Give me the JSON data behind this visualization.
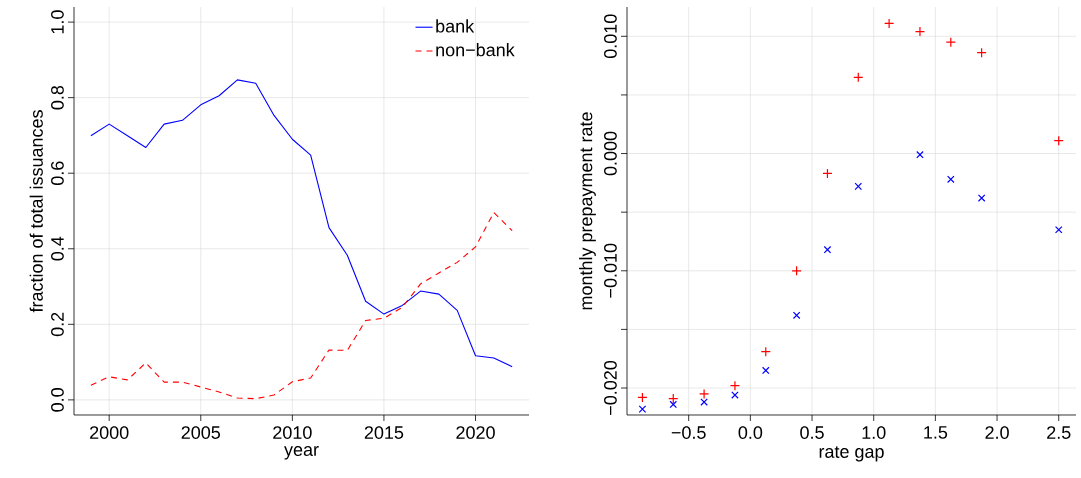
{
  "chart_data": [
    {
      "type": "line",
      "xlabel": "year",
      "ylabel": "fraction of total issuances",
      "x": [
        1999,
        2000,
        2001,
        2002,
        2003,
        2004,
        2005,
        2006,
        2007,
        2008,
        2009,
        2010,
        2011,
        2012,
        2013,
        2014,
        2015,
        2016,
        2017,
        2018,
        2019,
        2020,
        2021,
        2022
      ],
      "series": [
        {
          "name": "bank",
          "color": "#0000ff",
          "line_style": "solid",
          "values": [
            0.699,
            0.73,
            0.699,
            0.668,
            0.73,
            0.74,
            0.781,
            0.805,
            0.847,
            0.838,
            0.753,
            0.69,
            0.648,
            0.456,
            0.383,
            0.261,
            0.227,
            0.25,
            0.288,
            0.28,
            0.237,
            0.117,
            0.111,
            0.088
          ]
        },
        {
          "name": "non−bank",
          "color": "#ff0000",
          "line_style": "dashed",
          "values": [
            0.039,
            0.061,
            0.053,
            0.098,
            0.047,
            0.047,
            0.034,
            0.021,
            0.005,
            0.003,
            0.013,
            0.048,
            0.058,
            0.132,
            0.131,
            0.21,
            0.216,
            0.245,
            0.307,
            0.336,
            0.364,
            0.405,
            0.496,
            0.448
          ]
        }
      ],
      "xlim": [
        1998.08,
        2022.92
      ],
      "ylim": [
        -0.04,
        1.04
      ],
      "xticks": [
        2000,
        2005,
        2010,
        2015,
        2020
      ],
      "yticks": [
        {
          "value": 0,
          "label": "0.0"
        },
        0.2,
        0.4,
        0.6,
        0.8,
        {
          "value": 1,
          "label": "1.0"
        }
      ],
      "grid": true,
      "legend": "top right",
      "marker": "none"
    },
    {
      "type": "scatter",
      "xlabel": "rate gap",
      "ylabel": "monthly prepayment rate",
      "x": [
        -0.875,
        -0.625,
        -0.375,
        -0.125,
        0.125,
        0.375,
        0.625,
        0.875,
        1.125,
        1.375,
        1.625,
        1.875,
        2.5
      ],
      "series": [
        {
          "color": "#ff0000",
          "marker": "plus",
          "values": [
            -0.0208,
            -0.0209,
            -0.0205,
            -0.0198,
            -0.0169,
            -0.01,
            -0.0017,
            0.0065,
            0.0111,
            0.0104,
            0.0095,
            0.0086,
            0.0011
          ]
        },
        {
          "color": "#0000ff",
          "marker": "cross",
          "values": [
            -0.0218,
            -0.0214,
            -0.0212,
            -0.0206,
            -0.0185,
            -0.0138,
            -0.0082,
            -0.0028,
            null,
            -0.0001,
            -0.0022,
            -0.0038,
            -0.0065
          ]
        }
      ],
      "xlim": [
        -1.0,
        2.64
      ],
      "ylim": [
        -0.0223,
        0.0125
      ],
      "xticks": [
        {
          "value": -0.5,
          "label": "−0.5"
        },
        {
          "value": 0,
          "label": "0.0"
        },
        0.5,
        {
          "value": 1,
          "label": "1.0"
        },
        1.5,
        {
          "value": 2,
          "label": "2.0"
        },
        2.5
      ],
      "yticks": [
        {
          "value": -0.02,
          "label": "−0.020"
        },
        {
          "value": -0.015,
          "label": null
        },
        {
          "value": -0.01,
          "label": "−0.010"
        },
        {
          "value": -0.005,
          "label": null
        },
        {
          "value": 0.0,
          "label": "0.000"
        },
        {
          "value": 0.005,
          "label": null
        },
        {
          "value": 0.01,
          "label": "0.010"
        }
      ],
      "grid": true,
      "legend": false
    }
  ]
}
